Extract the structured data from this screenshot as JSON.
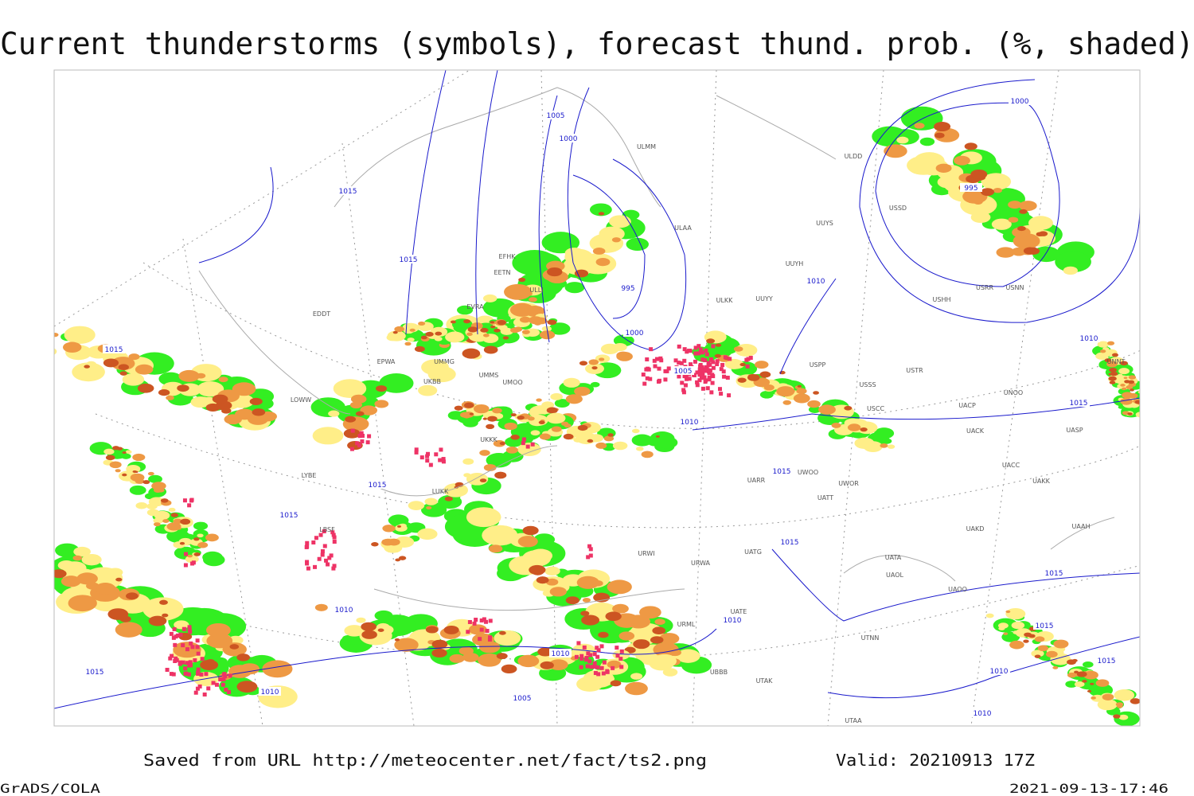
{
  "title": "Current thunderstorms (symbols), forecast thund. prob. (%, shaded)",
  "footer": {
    "source": "Saved from URL http://meteocenter.net/fact/ts2.png",
    "valid": "Valid: 20210913 17Z",
    "software": "GrADS/COLA",
    "timestamp": "2021-09-13-17:46"
  },
  "isobar_labels": [
    "1005",
    "1000",
    "1015",
    "1015",
    "995",
    "1000",
    "1005",
    "1010",
    "1015",
    "1015",
    "1015",
    "1010",
    "1010",
    "1015",
    "1015",
    "1015",
    "1015",
    "1010",
    "1010",
    "1005",
    "1010",
    "1015",
    "1010",
    "1000",
    "995",
    "1015",
    "1015",
    "1010",
    "1010"
  ],
  "stations": [
    "ULMM",
    "ULDD",
    "ULAA",
    "UUYS",
    "UUYH",
    "ULKK",
    "UUYY",
    "USPP",
    "USSS",
    "USTR",
    "UNOO",
    "UNNT",
    "USCC",
    "UACP",
    "UACK",
    "UASP",
    "UACC",
    "UAKK",
    "UAKD",
    "UAAH",
    "UATA",
    "UAOL",
    "UAOO",
    "UTNN",
    "UTAK",
    "UTAA",
    "UWOO",
    "UWOR",
    "UATT",
    "UARR",
    "URWA",
    "URWI",
    "UATG",
    "UATE",
    "URML",
    "UBBB",
    "USHH",
    "USRR",
    "USNN",
    "USSD",
    "LUKK",
    "LYBE",
    "LOWW",
    "LBSF",
    "EDDT",
    "EPWA",
    "UMMG",
    "UMMS",
    "UMOO",
    "UKKK",
    "UKBB",
    "ULLI",
    "EFHK",
    "EETN",
    "EVRA"
  ]
}
